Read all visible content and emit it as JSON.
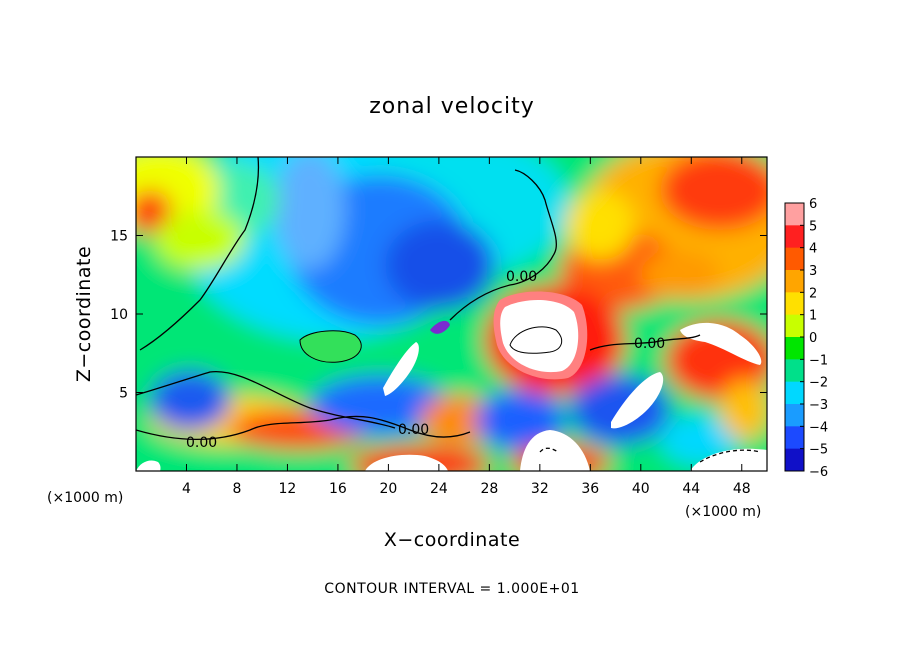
{
  "chart_data": {
    "type": "heatmap",
    "title": "zonal velocity",
    "xlabel": "X−coordinate",
    "ylabel": "Z−coordinate",
    "x_unit_left": "(×1000 m)",
    "x_unit_right": "(×1000 m)",
    "xlim": [
      0,
      50
    ],
    "ylim": [
      0,
      20
    ],
    "x_ticks": [
      4,
      8,
      12,
      16,
      20,
      24,
      28,
      32,
      36,
      40,
      44,
      48
    ],
    "y_ticks": [
      5,
      10,
      15
    ],
    "colorbar": {
      "ticks": [
        6,
        5,
        4,
        3,
        2,
        1,
        0,
        -1,
        -2,
        -3,
        -4,
        -5,
        -6
      ],
      "tick_labels": [
        "6",
        "5",
        "4",
        "3",
        "2",
        "1",
        "0",
        "−1",
        "−2",
        "−3",
        "−4",
        "−5",
        "−6"
      ],
      "min": -6,
      "max": 6
    },
    "contour_labels": [
      {
        "text": "0.00",
        "x": 6,
        "z": 1.8
      },
      {
        "text": "0.00",
        "x": 23.5,
        "z": 2.8
      },
      {
        "text": "0.00",
        "x": 31,
        "z": 12.5
      },
      {
        "text": "0.00",
        "x": 41,
        "z": 8.1
      }
    ],
    "footer": "CONTOUR INTERVAL = 1.000E+01"
  }
}
